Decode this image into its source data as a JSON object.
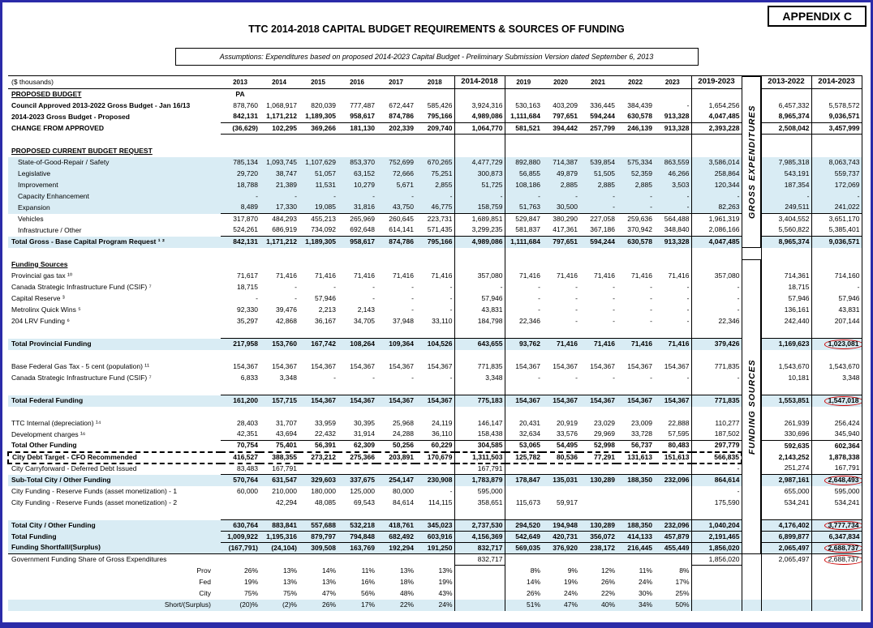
{
  "appendix": "APPENDIX C",
  "title": "TTC 2014-2018 CAPITAL BUDGET REQUIREMENTS & SOURCES OF FUNDING",
  "assumptions": "Assumptions: Expenditures based on proposed 2014-2023 Capital Budget - Preliminary Submission Version dated September 6, 2013",
  "unit_label": "($ thousands)",
  "colors": {
    "row_tint": "#d9ecf4",
    "highlight_red": "#cc0000",
    "page_border": "#2b2ba8"
  },
  "vertical_labels": {
    "gross": "GROSS EXPENDITURES",
    "funding": "FUNDING SOURCES"
  },
  "columns": [
    "2013",
    "2014",
    "2015",
    "2016",
    "2017",
    "2018",
    "2014-2018",
    "2019",
    "2020",
    "2021",
    "2022",
    "2023",
    "2019-2023",
    "2013-2022",
    "2014-2023"
  ],
  "rows": [
    {
      "type": "section",
      "label": "PROPOSED BUDGET",
      "pa": "PA"
    },
    {
      "type": "data",
      "label": "Council Approved 2013-2022 Gross Budget - Jan 16/13",
      "boldLabel": true,
      "cells": [
        "878,760",
        "1,068,917",
        "820,039",
        "777,487",
        "672,447",
        "585,426",
        "3,924,316",
        "530,163",
        "403,209",
        "336,445",
        "384,439",
        "-",
        "1,654,256",
        "6,457,332",
        "5,578,572"
      ]
    },
    {
      "type": "data",
      "label": "2014-2023 Gross Budget - Proposed",
      "bold": true,
      "cells": [
        "842,131",
        "1,171,212",
        "1,189,305",
        "958,617",
        "874,786",
        "795,166",
        "4,989,086",
        "1,111,684",
        "797,651",
        "594,244",
        "630,578",
        "913,328",
        "4,047,485",
        "8,965,374",
        "9,036,571"
      ]
    },
    {
      "type": "data",
      "label": "CHANGE FROM APPROVED",
      "bold": true,
      "ruleBoth": true,
      "cells": [
        "(36,629)",
        "102,295",
        "369,266",
        "181,130",
        "202,339",
        "209,740",
        "1,064,770",
        "581,521",
        "394,442",
        "257,799",
        "246,139",
        "913,328",
        "2,393,228",
        "2,508,042",
        "3,457,999"
      ]
    },
    {
      "type": "spacer"
    },
    {
      "type": "section",
      "label": "PROPOSED CURRENT BUDGET REQUEST"
    },
    {
      "type": "data",
      "label": "State-of-Good-Repair / Safety",
      "indent": true,
      "tint": true,
      "cells": [
        "785,134",
        "1,093,745",
        "1,107,629",
        "853,370",
        "752,699",
        "670,265",
        "4,477,729",
        "892,880",
        "714,387",
        "539,854",
        "575,334",
        "863,559",
        "3,586,014",
        "7,985,318",
        "8,063,743"
      ]
    },
    {
      "type": "data",
      "label": "Legislative",
      "indent": true,
      "tint": true,
      "cells": [
        "29,720",
        "38,747",
        "51,057",
        "63,152",
        "72,666",
        "75,251",
        "300,873",
        "56,855",
        "49,879",
        "51,505",
        "52,359",
        "46,266",
        "258,864",
        "543,191",
        "559,737"
      ]
    },
    {
      "type": "data",
      "label": "Improvement",
      "indent": true,
      "tint": true,
      "cells": [
        "18,788",
        "21,389",
        "11,531",
        "10,279",
        "5,671",
        "2,855",
        "51,725",
        "108,186",
        "2,885",
        "2,885",
        "2,885",
        "3,503",
        "120,344",
        "187,354",
        "172,069"
      ]
    },
    {
      "type": "data",
      "label": "Capacity Enhancement",
      "indent": true,
      "tint": true,
      "cells": [
        "-",
        "-",
        "-",
        "-",
        "-",
        "-",
        "-",
        "-",
        "-",
        "-",
        "-",
        "-",
        "-",
        "-",
        "-"
      ]
    },
    {
      "type": "data",
      "label": "Expansion",
      "indent": true,
      "tint": true,
      "cells": [
        "8,489",
        "17,330",
        "19,085",
        "31,816",
        "43,750",
        "46,775",
        "158,759",
        "51,763",
        "30,500",
        "-",
        "-",
        "-",
        "82,263",
        "249,511",
        "241,022"
      ]
    },
    {
      "type": "data",
      "label": "Vehicles",
      "indent": true,
      "ruleTop": true,
      "cells": [
        "317,870",
        "484,293",
        "455,213",
        "265,969",
        "260,645",
        "223,731",
        "1,689,851",
        "529,847",
        "380,290",
        "227,058",
        "259,636",
        "564,488",
        "1,961,319",
        "3,404,552",
        "3,651,170"
      ]
    },
    {
      "type": "data",
      "label": "Infrastructure / Other",
      "indent": true,
      "cells": [
        "524,261",
        "686,919",
        "734,092",
        "692,648",
        "614,141",
        "571,435",
        "3,299,235",
        "581,837",
        "417,361",
        "367,186",
        "370,942",
        "348,840",
        "2,086,166",
        "5,560,822",
        "5,385,401"
      ]
    },
    {
      "type": "total",
      "label": "Total Gross - Base Capital Program Request ¹ ²",
      "cells": [
        "842,131",
        "1,171,212",
        "1,189,305",
        "958,617",
        "874,786",
        "795,166",
        "4,989,086",
        "1,111,684",
        "797,651",
        "594,244",
        "630,578",
        "913,328",
        "4,047,485",
        "8,965,374",
        "9,036,571"
      ]
    },
    {
      "type": "spacer"
    },
    {
      "type": "section",
      "label": "Funding Sources"
    },
    {
      "type": "data",
      "label": "Provincial gas tax ¹⁰",
      "cells": [
        "71,617",
        "71,416",
        "71,416",
        "71,416",
        "71,416",
        "71,416",
        "357,080",
        "71,416",
        "71,416",
        "71,416",
        "71,416",
        "71,416",
        "357,080",
        "714,361",
        "714,160"
      ]
    },
    {
      "type": "data",
      "label": "Canada Strategic Infrastructure Fund (CSIF) ⁷",
      "cells": [
        "18,715",
        "-",
        "-",
        "-",
        "-",
        "-",
        "-",
        "-",
        "-",
        "-",
        "-",
        "-",
        "-",
        "18,715",
        "-"
      ]
    },
    {
      "type": "data",
      "label": "Capital Reserve ³",
      "cells": [
        "-",
        "-",
        "57,946",
        "-",
        "-",
        "-",
        "57,946",
        "-",
        "-",
        "-",
        "-",
        "-",
        "-",
        "57,946",
        "57,946"
      ]
    },
    {
      "type": "data",
      "label": "Metrolinx Quick Wins ⁵",
      "cells": [
        "92,330",
        "39,476",
        "2,213",
        "2,143",
        "-",
        "-",
        "43,831",
        "-",
        "-",
        "-",
        "-",
        "-",
        "-",
        "136,161",
        "43,831"
      ]
    },
    {
      "type": "data",
      "label": "204 LRV Funding ⁶",
      "cells": [
        "35,297",
        "42,868",
        "36,167",
        "34,705",
        "37,948",
        "33,110",
        "184,798",
        "22,346",
        "-",
        "-",
        "-",
        "-",
        "22,346",
        "242,440",
        "207,144"
      ]
    },
    {
      "type": "spacer"
    },
    {
      "type": "total",
      "label": "Total Provincial Funding",
      "circle": 14,
      "cells": [
        "217,958",
        "153,760",
        "167,742",
        "108,264",
        "109,364",
        "104,526",
        "643,655",
        "93,762",
        "71,416",
        "71,416",
        "71,416",
        "71,416",
        "379,426",
        "1,169,623",
        "1,023,081"
      ]
    },
    {
      "type": "spacer"
    },
    {
      "type": "data",
      "label": "Base Federal Gas Tax - 5 cent (population) ¹¹",
      "cells": [
        "154,367",
        "154,367",
        "154,367",
        "154,367",
        "154,367",
        "154,367",
        "771,835",
        "154,367",
        "154,367",
        "154,367",
        "154,367",
        "154,367",
        "771,835",
        "1,543,670",
        "1,543,670"
      ]
    },
    {
      "type": "data",
      "label": "Canada Strategic Infrastructure Fund (CSIF) ⁷",
      "cells": [
        "6,833",
        "3,348",
        "-",
        "-",
        "-",
        "-",
        "3,348",
        "-",
        "-",
        "-",
        "-",
        "-",
        "-",
        "10,181",
        "3,348"
      ]
    },
    {
      "type": "spacer"
    },
    {
      "type": "total",
      "label": "Total Federal Funding",
      "circle": 14,
      "cells": [
        "161,200",
        "157,715",
        "154,367",
        "154,367",
        "154,367",
        "154,367",
        "775,183",
        "154,367",
        "154,367",
        "154,367",
        "154,367",
        "154,367",
        "771,835",
        "1,553,851",
        "1,547,018"
      ]
    },
    {
      "type": "spacer"
    },
    {
      "type": "data",
      "label": "TTC Internal (depreciation) ¹⁴",
      "cells": [
        "28,403",
        "31,707",
        "33,959",
        "30,395",
        "25,968",
        "24,119",
        "146,147",
        "20,431",
        "20,919",
        "23,029",
        "23,009",
        "22,888",
        "110,277",
        "261,939",
        "256,424"
      ]
    },
    {
      "type": "data",
      "label": "Development charges ¹⁶",
      "cells": [
        "42,351",
        "43,694",
        "22,432",
        "31,914",
        "24,288",
        "36,110",
        "158,438",
        "32,634",
        "33,576",
        "29,969",
        "33,728",
        "57,595",
        "187,502",
        "330,696",
        "345,940"
      ]
    },
    {
      "type": "data",
      "label": "Total Other Funding",
      "bold": true,
      "ruleTop": true,
      "cells": [
        "70,754",
        "75,401",
        "56,391",
        "62,309",
        "50,256",
        "60,229",
        "304,585",
        "53,065",
        "54,495",
        "52,998",
        "56,737",
        "80,483",
        "297,779",
        "592,635",
        "602,364"
      ]
    },
    {
      "type": "data",
      "label": "City Debt Target - CFO Recommended",
      "bold": true,
      "dashed": true,
      "cells": [
        "416,527",
        "388,355",
        "273,212",
        "275,366",
        "203,891",
        "170,679",
        "1,311,503",
        "125,782",
        "80,536",
        "77,291",
        "131,613",
        "151,613",
        "566,835",
        "2,143,252",
        "1,878,338"
      ]
    },
    {
      "type": "data",
      "label": "City Carryforward - Deferred Debt Issued",
      "cells": [
        "83,483",
        "167,791",
        "",
        "",
        "",
        "",
        "167,791",
        "",
        "",
        "",
        "",
        "",
        "-",
        "251,274",
        "167,791"
      ]
    },
    {
      "type": "total",
      "label": "Sub-Total City / Other Funding",
      "circle": 14,
      "cells": [
        "570,764",
        "631,547",
        "329,603",
        "337,675",
        "254,147",
        "230,908",
        "1,783,879",
        "178,847",
        "135,031",
        "130,289",
        "188,350",
        "232,096",
        "864,614",
        "2,987,161",
        "2,648,493"
      ]
    },
    {
      "type": "data",
      "label": "City Funding - Reserve Funds (asset monetization) - 1",
      "cells": [
        "60,000",
        "210,000",
        "180,000",
        "125,000",
        "80,000",
        "-",
        "595,000",
        "",
        "",
        "",
        "",
        "",
        "-",
        "655,000",
        "595,000"
      ]
    },
    {
      "type": "data",
      "label": "City Funding - Reserve Funds (asset monetization) - 2",
      "cells": [
        "",
        "42,294",
        "48,085",
        "69,543",
        "84,614",
        "114,115",
        "358,651",
        "115,673",
        "59,917",
        "",
        "",
        "",
        "175,590",
        "534,241",
        "534,241"
      ]
    },
    {
      "type": "spacer"
    },
    {
      "type": "total",
      "label": "Total City / Other Funding",
      "circle": 14,
      "cells": [
        "630,764",
        "883,841",
        "557,688",
        "532,218",
        "418,761",
        "345,023",
        "2,737,530",
        "294,520",
        "194,948",
        "130,289",
        "188,350",
        "232,096",
        "1,040,204",
        "4,176,402",
        "3,777,734"
      ]
    },
    {
      "type": "total",
      "label": "Total Funding",
      "cells": [
        "1,009,922",
        "1,195,316",
        "879,797",
        "794,848",
        "682,492",
        "603,916",
        "4,156,369",
        "542,649",
        "420,731",
        "356,072",
        "414,133",
        "457,879",
        "2,191,465",
        "6,899,877",
        "6,347,834"
      ]
    },
    {
      "type": "total",
      "label": "Funding Shortfall/(Surplus)",
      "circle": 14,
      "cells": [
        "(167,791)",
        "(24,104)",
        "309,508",
        "163,769",
        "192,294",
        "191,250",
        "832,717",
        "569,035",
        "376,920",
        "238,172",
        "216,445",
        "455,449",
        "1,856,020",
        "2,065,497",
        "2,688,737"
      ]
    },
    {
      "type": "data",
      "label": "Government Funding Share of Gross Expenditures",
      "topline": true,
      "circle": 14,
      "boxed": [
        6,
        12
      ],
      "cells": [
        "",
        "",
        "",
        "",
        "",
        "",
        "832,717",
        "",
        "",
        "",
        "",
        "",
        "1,856,020",
        "2,065,497",
        "2,688,737"
      ]
    },
    {
      "type": "percent",
      "label": "Prov",
      "cells": [
        "26%",
        "13%",
        "14%",
        "11%",
        "13%",
        "13%",
        "",
        "8%",
        "9%",
        "12%",
        "11%",
        "8%",
        "",
        "",
        ""
      ]
    },
    {
      "type": "percent",
      "label": "Fed",
      "cells": [
        "19%",
        "13%",
        "13%",
        "16%",
        "18%",
        "19%",
        "",
        "14%",
        "19%",
        "26%",
        "24%",
        "17%",
        "",
        "",
        ""
      ]
    },
    {
      "type": "percent",
      "label": "City",
      "cells": [
        "75%",
        "75%",
        "47%",
        "56%",
        "48%",
        "43%",
        "",
        "26%",
        "24%",
        "22%",
        "30%",
        "25%",
        "",
        "",
        ""
      ]
    },
    {
      "type": "percent",
      "label": "Short/(Surplus)",
      "tint": true,
      "cells": [
        "(20)%",
        "(2)%",
        "26%",
        "17%",
        "22%",
        "24%",
        "",
        "51%",
        "47%",
        "40%",
        "34%",
        "50%",
        "",
        "",
        ""
      ]
    }
  ]
}
